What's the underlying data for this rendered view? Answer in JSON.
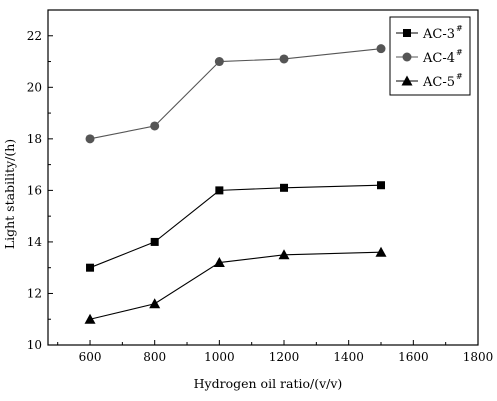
{
  "chart_data": {
    "type": "line",
    "title": "",
    "xlabel": "Hydrogen oil ratio/(v/v)",
    "ylabel": "Light stability/(h)",
    "xlim": [
      470,
      1800
    ],
    "ylim": [
      10,
      23
    ],
    "xticks": [
      600,
      800,
      1000,
      1200,
      1400,
      1600,
      1800
    ],
    "yticks": [
      10,
      12,
      14,
      16,
      18,
      20,
      22
    ],
    "grid": false,
    "legend_position": "top-right",
    "x": [
      600,
      800,
      1000,
      1200,
      1500
    ],
    "series": [
      {
        "name": "AC-3",
        "name_sup": "#",
        "marker": "square",
        "color": "#000000",
        "values": [
          13.0,
          14.0,
          16.0,
          16.1,
          16.2
        ]
      },
      {
        "name": "AC-4",
        "name_sup": "#",
        "marker": "circle",
        "color": "#555555",
        "values": [
          18.0,
          18.5,
          21.0,
          21.1,
          21.5
        ]
      },
      {
        "name": "AC-5",
        "name_sup": "#",
        "marker": "triangle",
        "color": "#000000",
        "values": [
          11.0,
          11.6,
          13.2,
          13.5,
          13.6
        ]
      }
    ]
  }
}
